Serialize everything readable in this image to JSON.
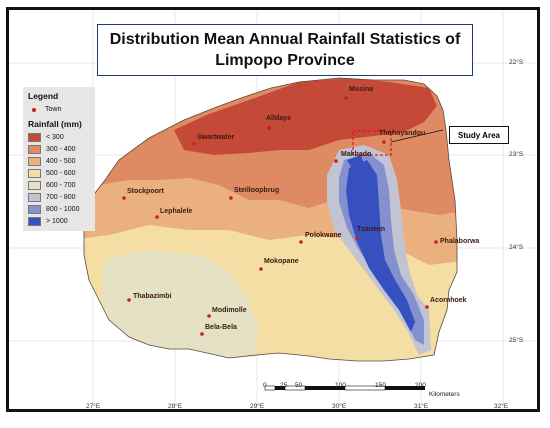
{
  "title": {
    "line1": "Distribution Mean Annual Rainfall Statistics of",
    "line2": "Limpopo Province"
  },
  "legend": {
    "heading": "Legend",
    "town_label": "Town",
    "rainfall_heading": "Rainfall (mm)",
    "classes": [
      {
        "label": "< 300",
        "color": "#c44a37"
      },
      {
        "label": "300 - 400",
        "color": "#de8a62"
      },
      {
        "label": "400 - 500",
        "color": "#ebb07f"
      },
      {
        "label": "500 - 600",
        "color": "#f4dea3"
      },
      {
        "label": "600 - 700",
        "color": "#e5e1c4"
      },
      {
        "label": "700 - 800",
        "color": "#c2c4d4"
      },
      {
        "label": "800 - 1000",
        "color": "#8590cf"
      },
      {
        "label": "> 1000",
        "color": "#3650bf"
      }
    ]
  },
  "towns": [
    "Musina",
    "Alldays",
    "Swartwater",
    "Thohoyandou",
    "Makhado",
    "Stockpoort",
    "Steilloopbrug",
    "Lephalele",
    "Polokwane",
    "Tzaneen",
    "Phalaborwa",
    "Mokopane",
    "Thabazimbi",
    "Modimolle",
    "Bela-Bela",
    "Acornhoek"
  ],
  "study_area": "Study Area",
  "longitudes": [
    "27°E",
    "28°E",
    "29°E",
    "30°E",
    "31°E",
    "32°E"
  ],
  "latitudes": [
    "22°S",
    "23°S",
    "24°S",
    "25°S"
  ],
  "scale_bar": {
    "ticks": [
      "0",
      "25",
      "50",
      "100",
      "150",
      "200"
    ],
    "unit": "Kilometers"
  }
}
